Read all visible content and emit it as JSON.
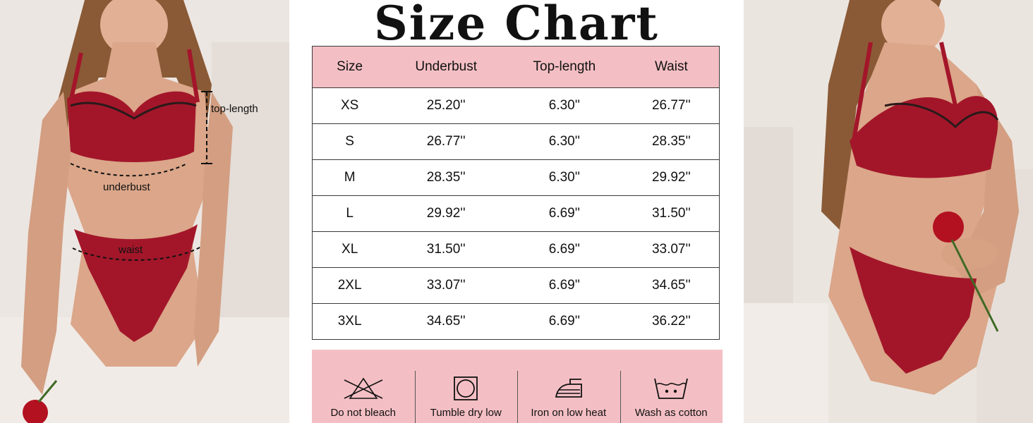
{
  "title": "Size Chart",
  "annotations": {
    "top_length": "top-length",
    "underbust": "underbust",
    "waist": "waist"
  },
  "table": {
    "headers": [
      "Size",
      "Underbust",
      "Top-length",
      "Waist"
    ],
    "rows": [
      [
        "XS",
        "25.20''",
        "6.30''",
        "26.77''"
      ],
      [
        "S",
        "26.77''",
        "6.30''",
        "28.35''"
      ],
      [
        "M",
        "28.35''",
        "6.30''",
        "29.92''"
      ],
      [
        "L",
        "29.92''",
        "6.69''",
        "31.50''"
      ],
      [
        "XL",
        "31.50''",
        "6.69''",
        "33.07''"
      ],
      [
        "2XL",
        "33.07''",
        "6.69''",
        "34.65''"
      ],
      [
        "3XL",
        "34.65''",
        "6.69''",
        "36.22''"
      ]
    ]
  },
  "care": [
    {
      "icon": "no-bleach-icon",
      "label": "Do not bleach"
    },
    {
      "icon": "tumble-dry-low-icon",
      "label": "Tumble dry low"
    },
    {
      "icon": "iron-low-heat-icon",
      "label": "Iron on low heat"
    },
    {
      "icon": "wash-cotton-icon",
      "label": "Wash as cotton"
    }
  ],
  "colors": {
    "header_pink": "#f4bfc4",
    "lingerie_red": "#a3162a",
    "skin": "#dba689"
  }
}
